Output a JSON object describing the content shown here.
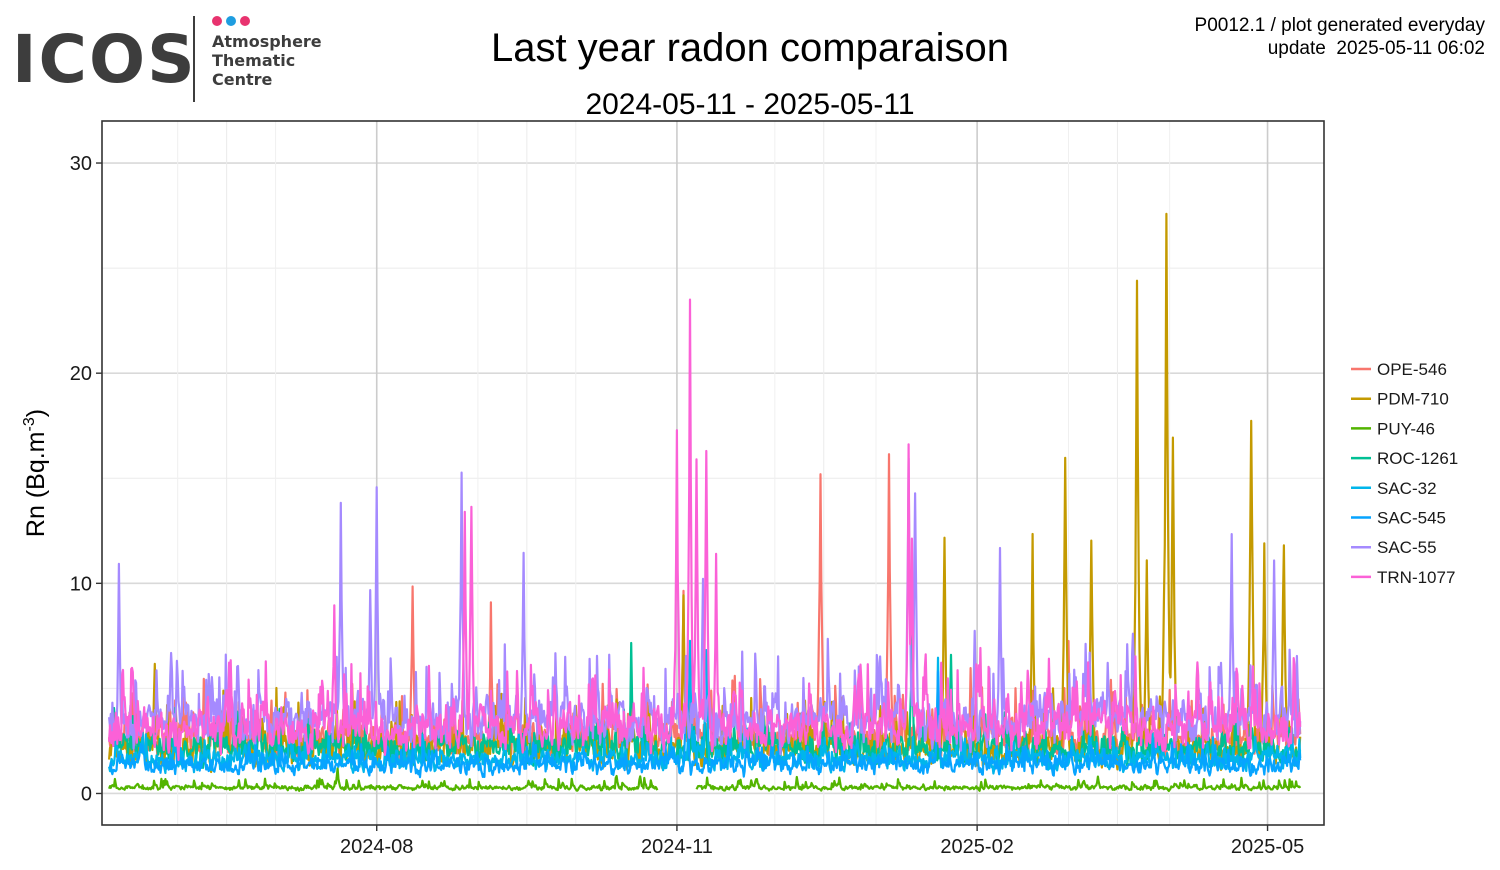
{
  "logo": {
    "wordmark": "ICOS",
    "line1": "Atmosphere",
    "line2": "Thematic",
    "line3": "Centre",
    "dot_colors": [
      "#e8336f",
      "#1e9de0",
      "#e8336f"
    ]
  },
  "header": {
    "meta_line1": "P0012.1 / plot generated everyday",
    "meta_line2": "update  2025-05-11 06:02"
  },
  "chart_data": {
    "type": "line",
    "title": "Last year radon comparaison",
    "subtitle": "2024-05-11 - 2025-05-11",
    "xlabel": "",
    "ylabel": "Rn (Bq.m",
    "ylabel_sup": "-3",
    "ylabel_end": ")",
    "xlim": [
      "2024-05-11",
      "2025-05-11"
    ],
    "ylim": [
      -1.5,
      32
    ],
    "yticks": [
      0,
      10,
      20,
      30
    ],
    "xticks": [
      {
        "date": "2024-08-01",
        "label": "2024-08"
      },
      {
        "date": "2024-11-01",
        "label": "2024-11"
      },
      {
        "date": "2025-02-01",
        "label": "2025-02"
      },
      {
        "date": "2025-05-01",
        "label": "2025-05"
      }
    ],
    "grid": true,
    "legend_position": "right",
    "series": [
      {
        "name": "OPE-546",
        "color": "#F8766D",
        "base": 1.8,
        "amp": 3.2,
        "peaks": [
          [
            "2024-08-12",
            11.4
          ],
          [
            "2024-09-05",
            9.5
          ],
          [
            "2024-11-03",
            10.0
          ],
          [
            "2024-12-15",
            17.6
          ],
          [
            "2025-01-05",
            17.8
          ],
          [
            "2025-01-30",
            6.5
          ],
          [
            "2025-03-01",
            7.5
          ]
        ]
      },
      {
        "name": "PDM-710",
        "color": "#C49A00",
        "base": 1.2,
        "amp": 3.5,
        "peaks": [
          [
            "2024-05-25",
            7.2
          ],
          [
            "2024-06-10",
            5.4
          ],
          [
            "2024-11-03",
            9.5
          ],
          [
            "2025-01-22",
            13.2
          ],
          [
            "2025-02-18",
            12.4
          ],
          [
            "2025-02-28",
            17.1
          ],
          [
            "2025-03-08",
            13.5
          ],
          [
            "2025-03-22",
            25.8
          ],
          [
            "2025-03-25",
            12.5
          ],
          [
            "2025-03-31",
            30.2
          ],
          [
            "2025-04-02",
            18.9
          ],
          [
            "2025-04-26",
            20.5
          ],
          [
            "2025-04-30",
            12.8
          ],
          [
            "2025-05-06",
            13.8
          ]
        ]
      },
      {
        "name": "PUY-46",
        "color": "#53B400",
        "base": 0.12,
        "amp": 0.6,
        "peaks": [
          [
            "2024-07-20",
            1.2
          ],
          [
            "2025-03-10",
            0.9
          ]
        ]
      },
      {
        "name": "ROC-1261",
        "color": "#00C094",
        "base": 1.6,
        "amp": 2.0,
        "peaks": [
          [
            "2024-10-18",
            7.2
          ],
          [
            "2025-01-12",
            8.8
          ],
          [
            "2025-01-24",
            7.6
          ]
        ]
      },
      {
        "name": "SAC-32",
        "color": "#00B6EB",
        "base": 1.2,
        "amp": 1.6,
        "peaks": [
          [
            "2024-11-05",
            8.5
          ],
          [
            "2024-11-10",
            7.5
          ],
          [
            "2025-01-20",
            6.5
          ]
        ]
      },
      {
        "name": "SAC-545",
        "color": "#06A4FF",
        "base": 1.0,
        "amp": 1.4,
        "peaks": [
          [
            "2024-11-04",
            7.0
          ],
          [
            "2025-01-20",
            6.2
          ]
        ]
      },
      {
        "name": "SAC-55",
        "color": "#A58AFF",
        "base": 2.4,
        "amp": 4.2,
        "peaks": [
          [
            "2024-05-14",
            11.0
          ],
          [
            "2024-07-21",
            14.7
          ],
          [
            "2024-07-30",
            11.1
          ],
          [
            "2024-08-01",
            14.9
          ],
          [
            "2024-08-27",
            16.3
          ],
          [
            "2024-09-15",
            12.6
          ],
          [
            "2024-11-09",
            12.0
          ],
          [
            "2025-01-11",
            18.2
          ],
          [
            "2025-01-13",
            16.5
          ],
          [
            "2025-02-08",
            12.1
          ],
          [
            "2025-04-20",
            13.6
          ],
          [
            "2025-05-03",
            12.3
          ]
        ]
      },
      {
        "name": "TRN-1077",
        "color": "#FB61D7",
        "base": 2.1,
        "amp": 4.0,
        "peaks": [
          [
            "2024-07-19",
            9.9
          ],
          [
            "2024-08-30",
            15.5
          ],
          [
            "2024-08-28",
            14.4
          ],
          [
            "2024-11-01",
            17.8
          ],
          [
            "2024-11-05",
            23.6
          ],
          [
            "2024-11-07",
            17.1
          ],
          [
            "2024-11-10",
            18.5
          ],
          [
            "2024-11-13",
            11.5
          ],
          [
            "2025-01-11",
            16.8
          ],
          [
            "2025-01-12",
            12.5
          ]
        ]
      }
    ]
  }
}
